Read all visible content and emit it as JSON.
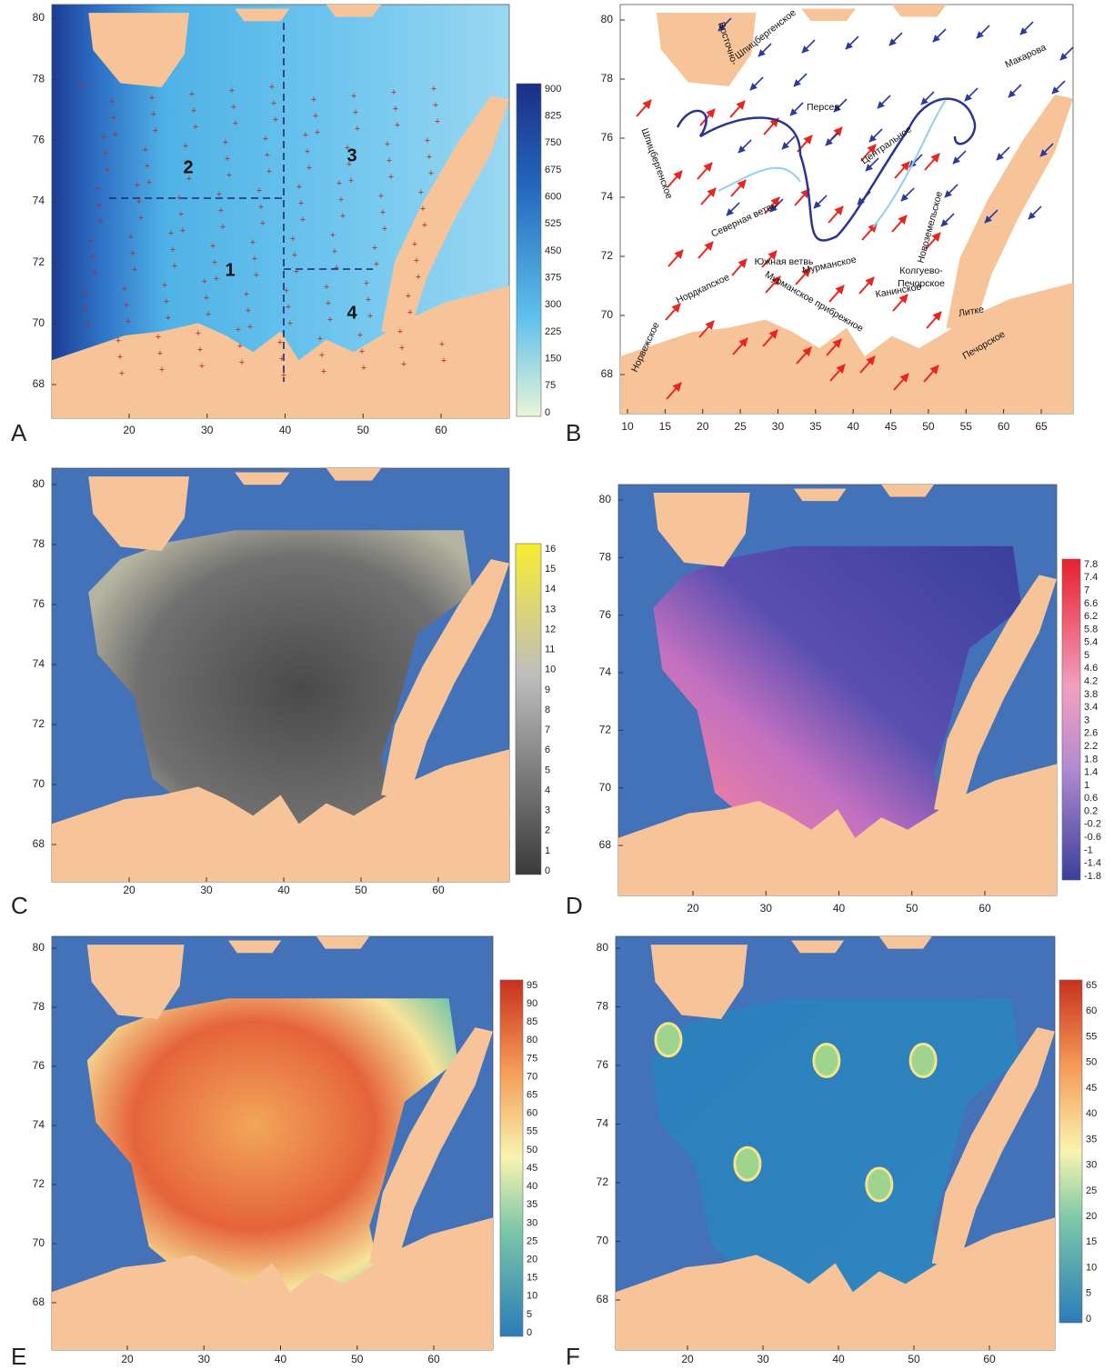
{
  "panels": [
    {
      "letter": "A",
      "x_ticks": [
        20,
        30,
        40,
        50,
        60
      ],
      "y_ticks": [
        80,
        78,
        76,
        74,
        72,
        70,
        68
      ],
      "colorbar_ticks": [
        900,
        825,
        750,
        675,
        600,
        525,
        450,
        375,
        300,
        225,
        150,
        75,
        0
      ],
      "region_labels": [
        "1",
        "2",
        "3",
        "4"
      ]
    },
    {
      "letter": "B",
      "x_ticks": [
        10,
        15,
        20,
        25,
        30,
        35,
        40,
        45,
        50,
        55,
        60,
        65
      ],
      "y_ticks": [
        80,
        78,
        76,
        74,
        72,
        70,
        68
      ],
      "current_labels": [
        "Восточно-",
        "Шпицбергенское",
        "Персея",
        "Центральное",
        "Макарова",
        "Шпицбергенское",
        "Северная ветвь",
        "Нордкапское",
        "Южная ветвь",
        "Мурманское",
        "Норвежское",
        "Мурманское прибрежное",
        "Канинское",
        "Колгуево-",
        "Печорское",
        "Литке",
        "Печорское",
        "Новоземельское"
      ]
    },
    {
      "letter": "C",
      "x_ticks": [
        20,
        30,
        40,
        50,
        60
      ],
      "y_ticks": [
        80,
        78,
        76,
        74,
        72,
        70,
        68
      ],
      "colorbar_ticks": [
        16,
        15,
        14,
        13,
        12,
        11,
        10,
        9,
        8,
        7,
        6,
        5,
        4,
        3,
        2,
        1,
        0
      ]
    },
    {
      "letter": "D",
      "x_ticks": [
        20,
        30,
        40,
        50,
        60
      ],
      "y_ticks": [
        80,
        78,
        76,
        74,
        72,
        70,
        68
      ],
      "colorbar_ticks": [
        7.8,
        7.4,
        7,
        6.6,
        6.2,
        5.8,
        5.4,
        5,
        4.6,
        4.2,
        3.8,
        3.4,
        3,
        2.6,
        2.2,
        1.8,
        1.4,
        1,
        0.6,
        0.2,
        -0.2,
        -0.6,
        -1,
        -1.4,
        -1.8
      ]
    },
    {
      "letter": "E",
      "x_ticks": [
        20,
        30,
        40,
        50,
        60
      ],
      "y_ticks": [
        80,
        78,
        76,
        74,
        72,
        70,
        68
      ],
      "colorbar_ticks": [
        95,
        90,
        85,
        80,
        75,
        70,
        65,
        60,
        55,
        50,
        45,
        40,
        35,
        30,
        25,
        20,
        15,
        10,
        5,
        0
      ]
    },
    {
      "letter": "F",
      "x_ticks": [
        20,
        30,
        40,
        50,
        60
      ],
      "y_ticks": [
        80,
        78,
        76,
        74,
        72,
        70,
        68
      ],
      "colorbar_ticks": [
        65,
        60,
        55,
        50,
        45,
        40,
        35,
        30,
        25,
        20,
        15,
        10,
        5,
        0
      ]
    }
  ]
}
